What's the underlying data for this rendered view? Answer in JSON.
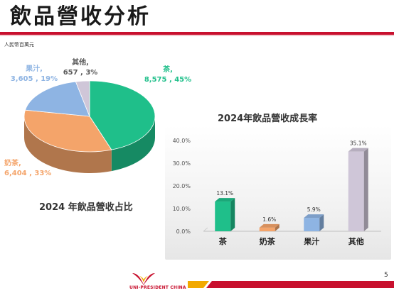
{
  "slide": {
    "title": "飲品營收分析",
    "unit_label": "人民幣百萬元",
    "page_number": "5",
    "logo_text": "UNI-PRESIDENT CHINA"
  },
  "colors": {
    "accent_red": "#c8102e",
    "tea": "#1fbf8a",
    "milk_tea": "#f4a46a",
    "juice": "#8eb4e3",
    "other": "#cfc6d8"
  },
  "chart_data": [
    {
      "type": "pie",
      "title": "2024 年飲品營收占比",
      "slices": [
        {
          "label": "茶,",
          "value": 8575,
          "value_text": "8,575 , 45%",
          "percent": 45,
          "color": "#1fbf8a"
        },
        {
          "label": "奶茶,",
          "value": 6404,
          "value_text": "6,404 , 33%",
          "percent": 33,
          "color": "#f4a46a"
        },
        {
          "label": "果汁,",
          "value": 3605,
          "value_text": "3,605 , 19%",
          "percent": 19,
          "color": "#8eb4e3"
        },
        {
          "label": "其他,",
          "value": 657,
          "value_text": "657 , 3%",
          "percent": 3,
          "color": "#cfc6d8"
        }
      ]
    },
    {
      "type": "bar",
      "title": "2024年飲品營收成長率",
      "categories": [
        "茶",
        "奶茶",
        "果汁",
        "其他"
      ],
      "values": [
        13.1,
        1.6,
        5.9,
        35.1
      ],
      "value_labels": [
        "13.1%",
        "1.6%",
        "5.9%",
        "35.1%"
      ],
      "colors": [
        "#1fbf8a",
        "#f4a46a",
        "#8eb4e3",
        "#cfc6d8"
      ],
      "ylim": [
        0,
        40
      ],
      "yticks": [
        0,
        10,
        20,
        30,
        40
      ],
      "ytick_labels": [
        "0.0%",
        "10.0%",
        "20.0%",
        "30.0%",
        "40.0%"
      ],
      "grid": false
    }
  ]
}
